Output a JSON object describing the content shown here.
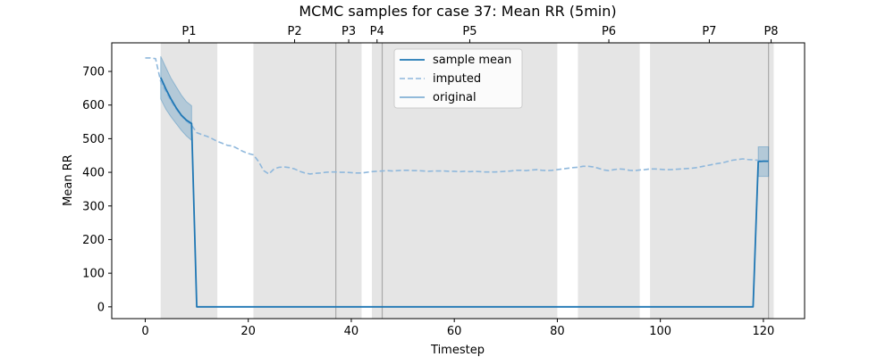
{
  "chart_data": {
    "type": "line",
    "title": "MCMC samples for case 37: Mean RR (5min)",
    "xlabel": "Timestep",
    "ylabel": "Mean RR",
    "xlim": [
      -6.5,
      128
    ],
    "ylim": [
      -35,
      785
    ],
    "xticks": [
      0,
      20,
      40,
      60,
      80,
      100,
      120
    ],
    "yticks": [
      0,
      100,
      200,
      300,
      400,
      500,
      600,
      700
    ],
    "grid": false,
    "legend": {
      "placement": "top-center",
      "entries": [
        "sample mean",
        "imputed",
        "original"
      ]
    },
    "colors": {
      "mean": "#1f77b4",
      "imputed": "#8fb8dc",
      "original": "#6fa4d0",
      "band": "#1f77b4",
      "period_shade": "#d3d3d3",
      "boundary": "#a9a9a9"
    },
    "periods": [
      {
        "label": "P1",
        "start": 3,
        "end": 14
      },
      {
        "label": "P2",
        "start": 21,
        "end": 37
      },
      {
        "label": "P3",
        "start": 37,
        "end": 42
      },
      {
        "label": "P4",
        "start": 44,
        "end": 46
      },
      {
        "label": "P5",
        "start": 46,
        "end": 80
      },
      {
        "label": "P6",
        "start": 84,
        "end": 96
      },
      {
        "label": "P7",
        "start": 98,
        "end": 121
      },
      {
        "label": "P8",
        "start": 121,
        "end": 122
      }
    ],
    "series": [
      {
        "name": "sample mean",
        "style": "solid",
        "x": [
          3,
          4,
          5,
          6,
          7,
          8,
          9,
          10,
          118,
          119,
          120,
          121
        ],
        "y": [
          682,
          648,
          618,
          592,
          570,
          555,
          545,
          0,
          0,
          432,
          433,
          433
        ]
      },
      {
        "name": "imputed",
        "style": "dashed",
        "x": [
          0,
          1,
          2,
          3,
          4,
          5,
          6,
          7,
          8,
          9,
          10,
          11,
          12,
          13,
          14,
          15,
          16,
          17,
          18,
          19,
          20,
          21,
          22,
          23,
          24,
          25,
          26,
          27,
          28,
          29,
          30,
          31,
          32,
          33,
          34,
          35,
          36,
          37,
          38,
          39,
          40,
          41,
          42,
          43,
          44,
          45,
          46,
          47,
          48,
          49,
          50,
          51,
          52,
          53,
          54,
          55,
          56,
          57,
          58,
          59,
          60,
          61,
          62,
          63,
          64,
          65,
          66,
          67,
          68,
          69,
          70,
          71,
          72,
          73,
          74,
          75,
          76,
          77,
          78,
          79,
          80,
          81,
          82,
          83,
          84,
          85,
          86,
          87,
          88,
          89,
          90,
          91,
          92,
          93,
          94,
          95,
          96,
          97,
          98,
          99,
          100,
          101,
          102,
          103,
          104,
          105,
          106,
          107,
          108,
          109,
          110,
          111,
          112,
          113,
          114,
          115,
          116,
          117,
          118,
          119,
          120,
          121
        ],
        "y": [
          740,
          740,
          738,
          670,
          640,
          612,
          588,
          568,
          552,
          540,
          518,
          512,
          507,
          500,
          492,
          486,
          480,
          478,
          470,
          462,
          456,
          452,
          432,
          405,
          395,
          410,
          415,
          416,
          414,
          410,
          403,
          398,
          395,
          397,
          398,
          400,
          401,
          401,
          400,
          400,
          399,
          398,
          398,
          400,
          402,
          403,
          404,
          405,
          404,
          405,
          406,
          406,
          405,
          405,
          404,
          403,
          404,
          404,
          404,
          403,
          403,
          402,
          403,
          402,
          403,
          402,
          401,
          401,
          401,
          402,
          403,
          404,
          406,
          406,
          405,
          407,
          408,
          406,
          405,
          406,
          408,
          410,
          412,
          414,
          415,
          418,
          418,
          416,
          412,
          407,
          405,
          408,
          410,
          409,
          406,
          405,
          407,
          408,
          410,
          410,
          409,
          408,
          408,
          409,
          410,
          411,
          412,
          414,
          417,
          420,
          423,
          426,
          428,
          432,
          436,
          438,
          440,
          438,
          437,
          436,
          434,
          432
        ]
      }
    ],
    "bands": [
      {
        "x": [
          3,
          4,
          5,
          6,
          7,
          8,
          9
        ],
        "lower": [
          618,
          588,
          565,
          545,
          525,
          508,
          495
        ],
        "upper": [
          745,
          712,
          680,
          655,
          630,
          610,
          598
        ]
      },
      {
        "x": [
          119,
          120,
          121
        ],
        "lower": [
          388,
          388,
          388
        ],
        "upper": [
          476,
          476,
          476
        ]
      }
    ]
  }
}
